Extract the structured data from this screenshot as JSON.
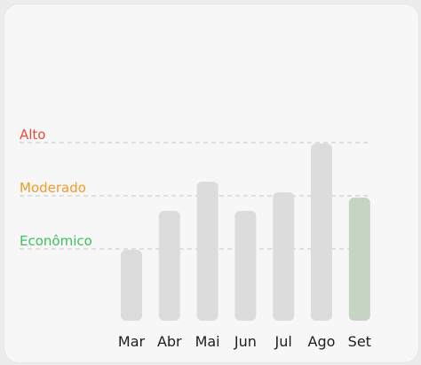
{
  "chart_data": {
    "type": "bar",
    "title": "",
    "xlabel": "",
    "ylabel": "",
    "categories": [
      "Mar",
      "Abr",
      "Mai",
      "Jun",
      "Jul",
      "Ago",
      "Set"
    ],
    "values": [
      80,
      124,
      157,
      124,
      145,
      200,
      139
    ],
    "ylim": [
      0,
      200
    ],
    "highlight_index": 6,
    "bar_color": "#dcdcdc",
    "highlight_color": "#c6d4c4",
    "grid": false,
    "thresholds": [
      {
        "label": "Alto",
        "value": 200,
        "color": "#e8493c"
      },
      {
        "label": "Moderado",
        "value": 140,
        "color": "#ef9a2a"
      },
      {
        "label": "Econômico",
        "value": 80,
        "color": "#3cc062"
      }
    ]
  }
}
